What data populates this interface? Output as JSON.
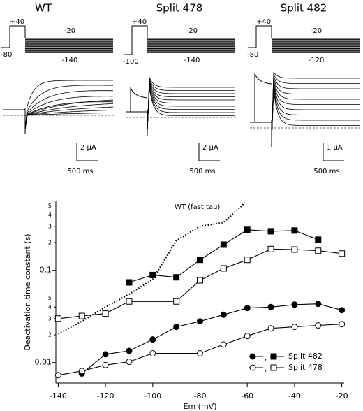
{
  "panels": [
    {
      "title": "WT",
      "pulse": "+40",
      "test": "-20",
      "hold": "-80",
      "low": "-140",
      "scale_current": "2 µA",
      "scale_time": "500 ms"
    },
    {
      "title": "Split 478",
      "pulse": "+40",
      "test": "-20",
      "hold": "-100",
      "low": "-140",
      "scale_current": "2 µA",
      "scale_time": "500 ms"
    },
    {
      "title": "Split 482",
      "pulse": "+40",
      "test": "-20",
      "hold": "-80",
      "low": "-120",
      "scale_current": "1 µA",
      "scale_time": "500 ms"
    }
  ],
  "chart_data": {
    "type": "line",
    "xlabel": "Em (mV)",
    "ylabel": "Deactivation time constant (s)",
    "log_y": true,
    "xlim": [
      -141,
      -19
    ],
    "ylim": [
      0.006,
      0.56
    ],
    "xticks": [
      -140,
      -120,
      -100,
      -80,
      -60,
      -40,
      -20
    ],
    "yticks": [
      0.01,
      {
        "value": 0.02,
        "label": "2"
      },
      {
        "value": 0.03,
        "label": "3"
      },
      {
        "value": 0.04,
        "label": "4"
      },
      {
        "value": 0.05,
        "label": "5"
      },
      0.1,
      {
        "value": 0.2,
        "label": "2"
      },
      {
        "value": 0.3,
        "label": "3"
      },
      {
        "value": 0.4,
        "label": "4"
      },
      {
        "value": 0.5,
        "label": "5"
      }
    ],
    "legend_separator": ",",
    "annotation": "WT (fast tau)",
    "wt": {
      "color": "#000000",
      "x": [
        -140,
        -130,
        -120,
        -110,
        -100,
        -90,
        -80,
        -70,
        -61
      ],
      "values": [
        0.0205,
        0.028,
        0.04,
        0.055,
        0.08,
        0.21,
        0.3,
        0.33,
        0.54
      ]
    },
    "series": [
      {
        "name": "Split 482",
        "color": "#000000",
        "filled": true,
        "components": [
          {
            "marker": "circle",
            "x": [
              -130,
              -120,
              -110,
              -100,
              -90,
              -80,
              -70,
              -60,
              -50,
              -40,
              -30,
              -20
            ],
            "values": [
              0.0076,
              0.0123,
              0.0134,
              0.0178,
              0.0244,
              0.028,
              0.033,
              0.039,
              0.04,
              0.0425,
              0.0433,
              0.037
            ]
          },
          {
            "marker": "square",
            "x": [
              -110,
              -100,
              -90,
              -80,
              -70,
              -60,
              -50,
              -40,
              -30
            ],
            "values": [
              0.074,
              0.089,
              0.084,
              0.13,
              0.19,
              0.275,
              0.265,
              0.27,
              0.215
            ]
          }
        ]
      },
      {
        "name": "Split 478",
        "color": "#000000",
        "filled": false,
        "components": [
          {
            "marker": "circle",
            "x": [
              -140,
              -130,
              -120,
              -110,
              -100,
              -80,
              -70,
              -60,
              -50,
              -40,
              -30,
              -20
            ],
            "values": [
              0.0073,
              0.0081,
              0.0094,
              0.0102,
              0.0126,
              0.0126,
              0.0157,
              0.0194,
              0.0235,
              0.0244,
              0.0253,
              0.0261
            ]
          },
          {
            "marker": "square",
            "x": [
              -140,
              -130,
              -120,
              -110,
              -90,
              -80,
              -70,
              -60,
              -50,
              -40,
              -30,
              -20
            ],
            "values": [
              0.03,
              0.032,
              0.034,
              0.046,
              0.046,
              0.078,
              0.105,
              0.13,
              0.17,
              0.168,
              0.163,
              0.152
            ]
          }
        ]
      }
    ]
  }
}
